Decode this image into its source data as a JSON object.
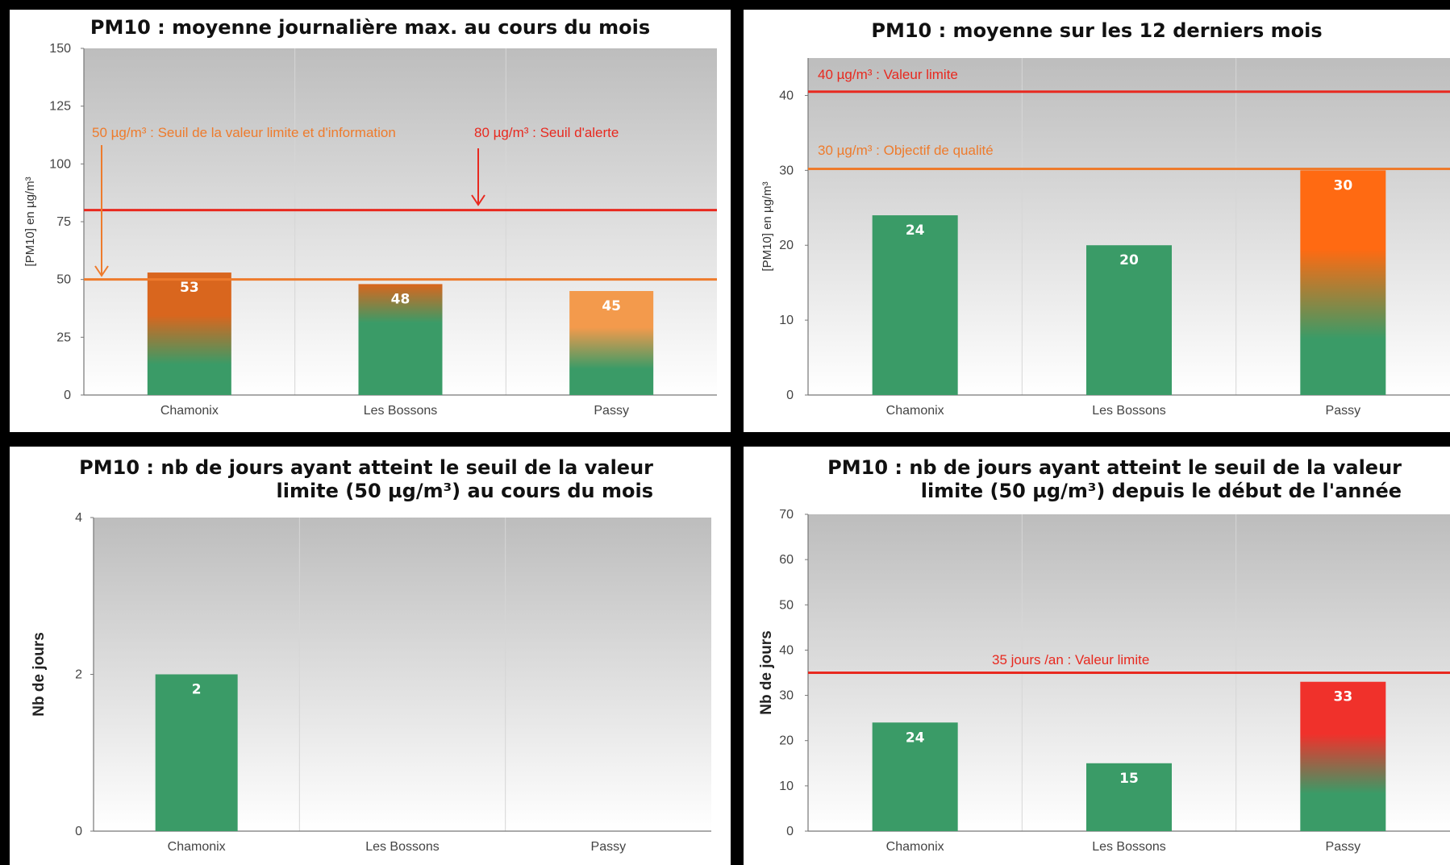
{
  "colors": {
    "limit_line": "#e8291f",
    "threshold_line": "#ee7b2c",
    "green": "#3a9b67",
    "orange_dark": "#d9661e",
    "orange_light": "#f39a4c",
    "orange_vivid": "#ff6a12",
    "red": "#f0312b",
    "plot_bg_top": "#bdbdbd",
    "plot_bg_bottom": "#ffffff"
  },
  "chart_data": [
    {
      "type": "bar",
      "title": "PM10 : moyenne journalière max. au cours du mois",
      "ylabel": "[PM10] en µg/m³",
      "ylim": [
        0,
        150
      ],
      "yticks": [
        0,
        25,
        50,
        75,
        100,
        125,
        150
      ],
      "categories": [
        "Chamonix",
        "Les Bossons",
        "Passy"
      ],
      "values": [
        53,
        48,
        45
      ],
      "value_labels": [
        "53",
        "48",
        "45"
      ],
      "bar_tops": [
        "orange_dark",
        "orange_dark",
        "orange_light"
      ],
      "bar_mid": [
        "orange_dark",
        "green",
        "orange_light"
      ],
      "hlines": [
        {
          "value": 50,
          "label": "50 µg/m³ : Seuil de la valeur limite et d'information",
          "color": "threshold_line",
          "arrow": true
        },
        {
          "value": 80,
          "label": "80 µg/m³ : Seuil d'alerte",
          "color": "limit_line",
          "arrow": true
        }
      ],
      "grid": true
    },
    {
      "type": "bar",
      "title": "PM10 : moyenne sur les 12 derniers mois",
      "ylabel": "[PM10] en µg/m³",
      "ylim": [
        0,
        45
      ],
      "yticks": [
        0,
        10,
        20,
        30,
        40
      ],
      "categories": [
        "Chamonix",
        "Les Bossons",
        "Passy"
      ],
      "values": [
        24,
        20,
        30
      ],
      "value_labels": [
        "24",
        "20",
        "30"
      ],
      "bar_tops": [
        "green",
        "green",
        "orange_vivid"
      ],
      "bar_mid": [
        "green",
        "green",
        "orange_vivid"
      ],
      "hlines": [
        {
          "value": 40.5,
          "label": "40 µg/m³ : Valeur limite",
          "color": "limit_line",
          "arrow": false
        },
        {
          "value": 30.2,
          "label": "30 µg/m³ : Objectif de qualité",
          "color": "threshold_line",
          "arrow": false
        }
      ],
      "grid": true
    },
    {
      "type": "bar",
      "title": [
        "PM10 : nb de jours ayant atteint le seuil de la valeur",
        "limite (50 µg/m³) au cours du mois"
      ],
      "ylabel": "Nb de jours",
      "ylim": [
        0,
        4
      ],
      "yticks": [
        0,
        2,
        4
      ],
      "categories": [
        "Chamonix",
        "Les Bossons",
        "Passy"
      ],
      "values": [
        2,
        0,
        0
      ],
      "value_labels": [
        "2",
        "",
        ""
      ],
      "bar_tops": [
        "green",
        "green",
        "green"
      ],
      "bar_mid": [
        "green",
        "green",
        "green"
      ],
      "hlines": [],
      "grid": true
    },
    {
      "type": "bar",
      "title": [
        "PM10 : nb de jours ayant atteint le seuil de la valeur",
        "limite (50 µg/m³) depuis le début de l'année"
      ],
      "ylabel": "Nb de jours",
      "ylim": [
        0,
        70
      ],
      "yticks": [
        0,
        10,
        20,
        30,
        40,
        50,
        60,
        70
      ],
      "categories": [
        "Chamonix",
        "Les Bossons",
        "Passy"
      ],
      "values": [
        24,
        15,
        33
      ],
      "value_labels": [
        "24",
        "15",
        "33"
      ],
      "bar_tops": [
        "green",
        "green",
        "red"
      ],
      "bar_mid": [
        "green",
        "green",
        "red"
      ],
      "hlines": [
        {
          "value": 35,
          "label": "35 jours /an : Valeur limite",
          "color": "limit_line",
          "arrow": false
        }
      ],
      "grid": true
    }
  ]
}
